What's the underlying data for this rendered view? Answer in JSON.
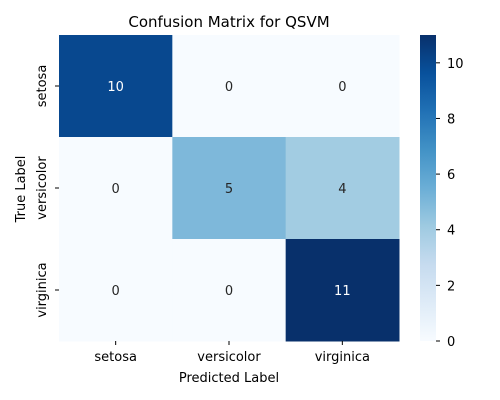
{
  "chart_data": {
    "type": "heatmap",
    "title": "Confusion Matrix for QSVM",
    "xlabel": "Predicted Label",
    "ylabel": "True Label",
    "x_categories": [
      "setosa",
      "versicolor",
      "virginica"
    ],
    "y_categories": [
      "setosa",
      "versicolor",
      "virginica"
    ],
    "values": [
      [
        10,
        0,
        0
      ],
      [
        0,
        5,
        4
      ],
      [
        0,
        0,
        11
      ]
    ],
    "colormap": "Blues",
    "color_low": "#f7fbff",
    "color_high": "#08306b",
    "vmin": 0,
    "vmax": 11,
    "colorbar_ticks": [
      0,
      2,
      4,
      6,
      8,
      10
    ]
  }
}
